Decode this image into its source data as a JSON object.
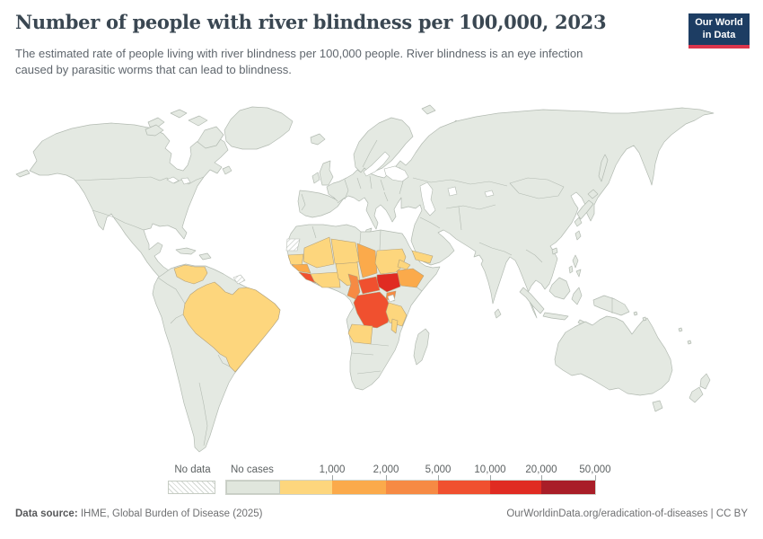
{
  "header": {
    "title": "Number of people with river blindness per 100,000, 2023",
    "subtitle_line1": "The estimated rate of people living with river blindness per 100,000 people. River blindness is an eye infection",
    "subtitle_line2": "caused by parasitic worms that can lead to blindness.",
    "logo": {
      "line1": "Our World",
      "line2": "in Data"
    }
  },
  "legend": {
    "no_data": "No data",
    "no_cases": "No cases",
    "segments": [
      {
        "label": "No cases",
        "color": "#e0e6dd"
      },
      {
        "label": "1,000",
        "color": "#fdd67d"
      },
      {
        "label": "2,000",
        "color": "#fbaa4b"
      },
      {
        "label": "5,000",
        "color": "#f68a44"
      },
      {
        "label": "10,000",
        "color": "#f0502f"
      },
      {
        "label": "20,000",
        "color": "#e02b22"
      },
      {
        "label": "50,000",
        "color": "#a91e28"
      }
    ]
  },
  "footer": {
    "source_bold": "Data source:",
    "source_rest": " IHME, Global Burden of Disease (2025)",
    "right": "OurWorldinData.org/eradication-of-diseases | CC BY"
  },
  "map": {
    "default_fill": "#e4e9e2",
    "border_color": "#b2bab1",
    "country_fills": {
      "venezuela": "#fdd67d",
      "brazil": "#fdd67d",
      "french-guiana": "hatch",
      "western-sahara": "hatch",
      "senegal-gambia": "#fdd67d",
      "guinea": "#fbaa4b",
      "sierra-leone-liberia": "#f0502f",
      "mali": "#fdd67d",
      "cote-divoire-ghana": "#fdd67d",
      "niger": "#fdd67d",
      "nigeria": "#fdd67d",
      "chad": "#fbaa4b",
      "sudan": "#fdd67d",
      "eritrea": "#fdd67d",
      "yemen": "#fdd67d",
      "ethiopia": "#fbaa4b",
      "south-sudan": "#e02b22",
      "central-african-republic": "#f0502f",
      "cameroon": "#f68a44",
      "uganda": "#f68a44",
      "dr-congo": "#f0502f",
      "tanzania": "#fdd67d",
      "angola": "#fdd67d",
      "malawi": "#fdd67d"
    }
  },
  "chart_data": {
    "type": "choropleth",
    "title": "Number of people with river blindness per 100,000, 2023",
    "unit": "people living with river blindness per 100,000",
    "year": "2023",
    "legend_bins": [
      "No data",
      "No cases",
      "≤1,000",
      "1,000–2,000",
      "2,000–5,000",
      "5,000–10,000",
      "10,000–20,000",
      "20,000–50,000"
    ],
    "values_by_bin": {
      "10,000–20,000": [
        "South Sudan"
      ],
      "5,000–10,000": [
        "Democratic Republic of Congo",
        "Central African Republic",
        "Liberia",
        "Sierra Leone"
      ],
      "2,000–5,000": [
        "Cameroon",
        "Uganda"
      ],
      "1,000–2,000": [
        "Chad",
        "Ethiopia",
        "Guinea"
      ],
      "≤1,000": [
        "Brazil",
        "Venezuela",
        "Senegal",
        "Gambia",
        "Guinea-Bissau",
        "Mali",
        "Burkina Faso",
        "Côte d'Ivoire",
        "Ghana",
        "Togo",
        "Benin",
        "Niger",
        "Nigeria",
        "Sudan",
        "Eritrea",
        "Yemen",
        "Tanzania",
        "Burundi",
        "Angola",
        "Malawi"
      ],
      "No data": [
        "Western Sahara",
        "French Guiana"
      ],
      "No cases": [
        "All other countries shown"
      ]
    }
  }
}
